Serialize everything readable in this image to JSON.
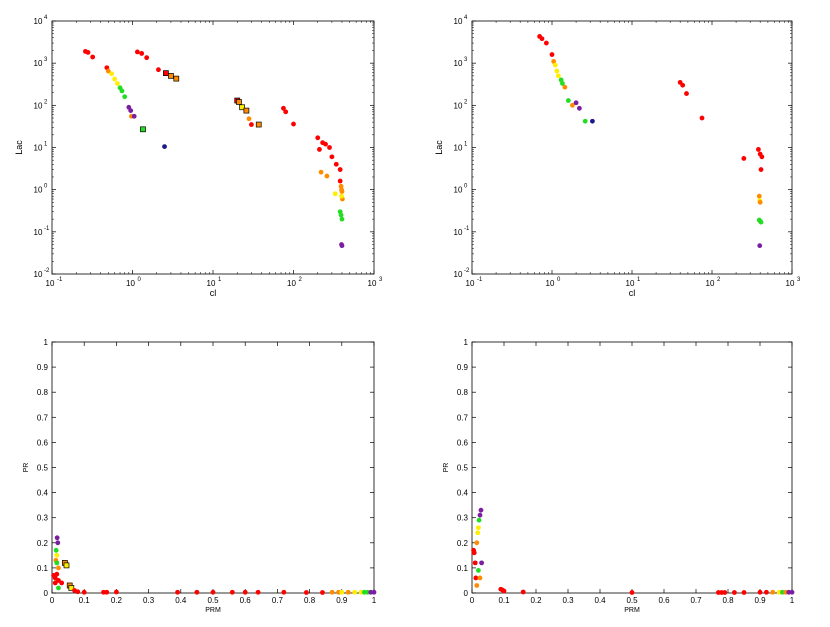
{
  "chart_data": [
    {
      "type": "scatter",
      "title": "",
      "xlabel": "cl",
      "ylabel": "Lac",
      "xscale": "log",
      "yscale": "log",
      "xlim": [
        0.1,
        1000
      ],
      "ylim": [
        0.01,
        10000
      ],
      "xticks": [
        0.1,
        1,
        10,
        100,
        1000
      ],
      "yticks": [
        0.01,
        0.1,
        1,
        10,
        100,
        1000,
        10000
      ],
      "xtick_labels": [
        [
          "10",
          "-1"
        ],
        [
          "10",
          "0"
        ],
        [
          "10",
          "1"
        ],
        [
          "10",
          "2"
        ],
        [
          "10",
          "3"
        ]
      ],
      "ytick_labels": [
        [
          "10",
          "-2"
        ],
        [
          "10",
          "-1"
        ],
        [
          "10",
          "0"
        ],
        [
          "10",
          "1"
        ],
        [
          "10",
          "2"
        ],
        [
          "10",
          "3"
        ],
        [
          "10",
          "4"
        ]
      ],
      "grid": false,
      "legend": false,
      "colors": {
        "red": "#ff0000",
        "orange": "#ff8c00",
        "yellow": "#ffee00",
        "green": "#22dd22",
        "purple": "#7a1fa2",
        "darkblue": "#1a1a8a"
      },
      "points": [
        {
          "x": 0.26,
          "y": 1900,
          "c": "red"
        },
        {
          "x": 0.28,
          "y": 1800,
          "c": "red"
        },
        {
          "x": 0.32,
          "y": 1400,
          "c": "red"
        },
        {
          "x": 1.15,
          "y": 1850,
          "c": "red"
        },
        {
          "x": 1.3,
          "y": 1700,
          "c": "red"
        },
        {
          "x": 1.5,
          "y": 1350,
          "c": "red"
        },
        {
          "x": 2.1,
          "y": 700,
          "c": "red"
        },
        {
          "x": 2.6,
          "y": 580,
          "c": "red",
          "outline": true
        },
        {
          "x": 3.0,
          "y": 500,
          "c": "orange",
          "outline": true
        },
        {
          "x": 3.5,
          "y": 430,
          "c": "orange",
          "outline": true
        },
        {
          "x": 0.48,
          "y": 780,
          "c": "red"
        },
        {
          "x": 0.5,
          "y": 650,
          "c": "orange"
        },
        {
          "x": 0.55,
          "y": 560,
          "c": "yellow"
        },
        {
          "x": 0.6,
          "y": 420,
          "c": "yellow"
        },
        {
          "x": 0.65,
          "y": 330,
          "c": "yellow"
        },
        {
          "x": 0.7,
          "y": 260,
          "c": "green"
        },
        {
          "x": 0.74,
          "y": 220,
          "c": "green"
        },
        {
          "x": 0.8,
          "y": 160,
          "c": "green"
        },
        {
          "x": 0.9,
          "y": 90,
          "c": "purple"
        },
        {
          "x": 0.95,
          "y": 75,
          "c": "purple"
        },
        {
          "x": 0.97,
          "y": 55,
          "c": "orange"
        },
        {
          "x": 1.05,
          "y": 55,
          "c": "purple"
        },
        {
          "x": 1.35,
          "y": 27,
          "c": "green",
          "outline": true
        },
        {
          "x": 2.5,
          "y": 10.5,
          "c": "darkblue"
        },
        {
          "x": 20,
          "y": 130,
          "c": "red",
          "outline": true
        },
        {
          "x": 21,
          "y": 120,
          "c": "orange",
          "outline": true
        },
        {
          "x": 23,
          "y": 90,
          "c": "yellow",
          "outline": true
        },
        {
          "x": 26,
          "y": 75,
          "c": "orange",
          "outline": true
        },
        {
          "x": 28,
          "y": 48,
          "c": "orange"
        },
        {
          "x": 30,
          "y": 35,
          "c": "red"
        },
        {
          "x": 37,
          "y": 35,
          "c": "orange",
          "outline": true
        },
        {
          "x": 75,
          "y": 85,
          "c": "red"
        },
        {
          "x": 80,
          "y": 70,
          "c": "red"
        },
        {
          "x": 100,
          "y": 36,
          "c": "red"
        },
        {
          "x": 200,
          "y": 17,
          "c": "red"
        },
        {
          "x": 210,
          "y": 9,
          "c": "red"
        },
        {
          "x": 230,
          "y": 13,
          "c": "red"
        },
        {
          "x": 250,
          "y": 12,
          "c": "red"
        },
        {
          "x": 280,
          "y": 10,
          "c": "red"
        },
        {
          "x": 300,
          "y": 6,
          "c": "red"
        },
        {
          "x": 340,
          "y": 4,
          "c": "red"
        },
        {
          "x": 380,
          "y": 3,
          "c": "red"
        },
        {
          "x": 220,
          "y": 2.6,
          "c": "orange"
        },
        {
          "x": 260,
          "y": 2.1,
          "c": "orange"
        },
        {
          "x": 330,
          "y": 0.8,
          "c": "yellow"
        },
        {
          "x": 380,
          "y": 1.6,
          "c": "red"
        },
        {
          "x": 390,
          "y": 1.2,
          "c": "orange"
        },
        {
          "x": 395,
          "y": 1.0,
          "c": "orange"
        },
        {
          "x": 400,
          "y": 0.9,
          "c": "orange"
        },
        {
          "x": 405,
          "y": 0.6,
          "c": "orange"
        },
        {
          "x": 395,
          "y": 0.7,
          "c": "yellow"
        },
        {
          "x": 380,
          "y": 0.3,
          "c": "green"
        },
        {
          "x": 390,
          "y": 0.25,
          "c": "green"
        },
        {
          "x": 400,
          "y": 0.2,
          "c": "green"
        },
        {
          "x": 395,
          "y": 0.05,
          "c": "purple"
        },
        {
          "x": 400,
          "y": 0.047,
          "c": "purple"
        }
      ]
    },
    {
      "type": "scatter",
      "title": "",
      "xlabel": "cl",
      "ylabel": "Lac",
      "xscale": "log",
      "yscale": "log",
      "xlim": [
        0.1,
        1000
      ],
      "ylim": [
        0.01,
        10000
      ],
      "xticks": [
        0.1,
        1,
        10,
        100,
        1000
      ],
      "yticks": [
        0.01,
        0.1,
        1,
        10,
        100,
        1000,
        10000
      ],
      "xtick_labels": [
        [
          "10",
          "-1"
        ],
        [
          "10",
          "0"
        ],
        [
          "10",
          "1"
        ],
        [
          "10",
          "2"
        ],
        [
          "10",
          "3"
        ]
      ],
      "ytick_labels": [
        [
          "10",
          "-2"
        ],
        [
          "10",
          "-1"
        ],
        [
          "10",
          "0"
        ],
        [
          "10",
          "1"
        ],
        [
          "10",
          "2"
        ],
        [
          "10",
          "3"
        ],
        [
          "10",
          "4"
        ]
      ],
      "grid": false,
      "legend": false,
      "points": [
        {
          "x": 0.7,
          "y": 4300,
          "c": "red"
        },
        {
          "x": 0.75,
          "y": 3800,
          "c": "red"
        },
        {
          "x": 0.85,
          "y": 3000,
          "c": "red"
        },
        {
          "x": 1.0,
          "y": 1600,
          "c": "red"
        },
        {
          "x": 1.05,
          "y": 1100,
          "c": "orange"
        },
        {
          "x": 1.1,
          "y": 900,
          "c": "yellow"
        },
        {
          "x": 1.15,
          "y": 650,
          "c": "yellow"
        },
        {
          "x": 1.2,
          "y": 500,
          "c": "yellow"
        },
        {
          "x": 1.3,
          "y": 400,
          "c": "green"
        },
        {
          "x": 1.35,
          "y": 330,
          "c": "green"
        },
        {
          "x": 1.45,
          "y": 270,
          "c": "orange"
        },
        {
          "x": 1.6,
          "y": 130,
          "c": "green"
        },
        {
          "x": 1.8,
          "y": 100,
          "c": "orange"
        },
        {
          "x": 2.0,
          "y": 115,
          "c": "purple"
        },
        {
          "x": 2.2,
          "y": 85,
          "c": "purple"
        },
        {
          "x": 2.6,
          "y": 42,
          "c": "green"
        },
        {
          "x": 3.2,
          "y": 42,
          "c": "darkblue"
        },
        {
          "x": 40,
          "y": 350,
          "c": "red"
        },
        {
          "x": 43,
          "y": 300,
          "c": "red"
        },
        {
          "x": 48,
          "y": 190,
          "c": "red"
        },
        {
          "x": 75,
          "y": 50,
          "c": "red"
        },
        {
          "x": 250,
          "y": 5.5,
          "c": "red"
        },
        {
          "x": 380,
          "y": 9,
          "c": "red"
        },
        {
          "x": 400,
          "y": 7,
          "c": "red"
        },
        {
          "x": 420,
          "y": 6,
          "c": "red"
        },
        {
          "x": 410,
          "y": 3,
          "c": "red"
        },
        {
          "x": 390,
          "y": 0.7,
          "c": "orange"
        },
        {
          "x": 395,
          "y": 0.55,
          "c": "yellow"
        },
        {
          "x": 400,
          "y": 0.5,
          "c": "orange"
        },
        {
          "x": 390,
          "y": 0.19,
          "c": "green"
        },
        {
          "x": 400,
          "y": 0.18,
          "c": "green"
        },
        {
          "x": 410,
          "y": 0.17,
          "c": "green"
        },
        {
          "x": 395,
          "y": 0.047,
          "c": "purple"
        }
      ]
    },
    {
      "type": "scatter",
      "title": "",
      "xlabel": "PRM",
      "ylabel": "PR",
      "xlim": [
        0,
        1
      ],
      "ylim": [
        0,
        1
      ],
      "xticks": [
        0,
        0.1,
        0.2,
        0.3,
        0.4,
        0.5,
        0.6,
        0.7,
        0.8,
        0.9,
        1
      ],
      "yticks": [
        0,
        0.1,
        0.2,
        0.3,
        0.4,
        0.5,
        0.6,
        0.7,
        0.8,
        0.9,
        1
      ],
      "xtick_labels": [
        "0",
        "0.1",
        "0.2",
        "0.3",
        "0.4",
        "0.5",
        "0.6",
        "0.7",
        "0.8",
        "0.9",
        "1"
      ],
      "ytick_labels": [
        "0",
        "0.1",
        "0.2",
        "0.3",
        "0.4",
        "0.5",
        "0.6",
        "0.7",
        "0.8",
        "0.9",
        "1"
      ],
      "grid": false,
      "legend": false,
      "points": [
        {
          "x": 0.005,
          "y": 0.07,
          "c": "red"
        },
        {
          "x": 0.01,
          "y": 0.06,
          "c": "red"
        },
        {
          "x": 0.015,
          "y": 0.075,
          "c": "red"
        },
        {
          "x": 0.02,
          "y": 0.05,
          "c": "red"
        },
        {
          "x": 0.01,
          "y": 0.04,
          "c": "red"
        },
        {
          "x": 0.012,
          "y": 0.13,
          "c": "orange"
        },
        {
          "x": 0.015,
          "y": 0.15,
          "c": "yellow"
        },
        {
          "x": 0.013,
          "y": 0.17,
          "c": "green"
        },
        {
          "x": 0.015,
          "y": 0.12,
          "c": "green"
        },
        {
          "x": 0.018,
          "y": 0.2,
          "c": "purple"
        },
        {
          "x": 0.016,
          "y": 0.22,
          "c": "purple"
        },
        {
          "x": 0.02,
          "y": 0.1,
          "c": "orange"
        },
        {
          "x": 0.02,
          "y": 0.02,
          "c": "green"
        },
        {
          "x": 0.03,
          "y": 0.04,
          "c": "red"
        },
        {
          "x": 0.04,
          "y": 0.12,
          "c": "orange",
          "outline": true
        },
        {
          "x": 0.045,
          "y": 0.11,
          "c": "yellow",
          "outline": true
        },
        {
          "x": 0.055,
          "y": 0.03,
          "c": "orange",
          "outline": true
        },
        {
          "x": 0.06,
          "y": 0.02,
          "c": "yellow",
          "outline": true
        },
        {
          "x": 0.07,
          "y": 0.01,
          "c": "red"
        },
        {
          "x": 0.08,
          "y": 0.005,
          "c": "red"
        },
        {
          "x": 0.1,
          "y": 0.003,
          "c": "red"
        },
        {
          "x": 0.16,
          "y": 0.003,
          "c": "red"
        },
        {
          "x": 0.17,
          "y": 0.003,
          "c": "red"
        },
        {
          "x": 0.2,
          "y": 0.004,
          "c": "red"
        },
        {
          "x": 0.39,
          "y": 0.003,
          "c": "red"
        },
        {
          "x": 0.45,
          "y": 0.003,
          "c": "red"
        },
        {
          "x": 0.5,
          "y": 0.003,
          "c": "red"
        },
        {
          "x": 0.56,
          "y": 0.003,
          "c": "red"
        },
        {
          "x": 0.6,
          "y": 0.003,
          "c": "red"
        },
        {
          "x": 0.64,
          "y": 0.003,
          "c": "red"
        },
        {
          "x": 0.72,
          "y": 0.003,
          "c": "red"
        },
        {
          "x": 0.79,
          "y": 0.002,
          "c": "red"
        },
        {
          "x": 0.84,
          "y": 0.002,
          "c": "red"
        },
        {
          "x": 0.87,
          "y": 0.003,
          "c": "orange"
        },
        {
          "x": 0.89,
          "y": 0.003,
          "c": "orange"
        },
        {
          "x": 0.9,
          "y": 0.003,
          "c": "yellow"
        },
        {
          "x": 0.92,
          "y": 0.003,
          "c": "orange"
        },
        {
          "x": 0.94,
          "y": 0.003,
          "c": "yellow"
        },
        {
          "x": 0.96,
          "y": 0.003,
          "c": "yellow"
        },
        {
          "x": 0.97,
          "y": 0.003,
          "c": "green"
        },
        {
          "x": 0.98,
          "y": 0.003,
          "c": "green"
        },
        {
          "x": 0.99,
          "y": 0.003,
          "c": "purple"
        },
        {
          "x": 1.0,
          "y": 0.003,
          "c": "purple"
        }
      ]
    },
    {
      "type": "scatter",
      "title": "",
      "xlabel": "PRM",
      "ylabel": "PR",
      "xlim": [
        0,
        1
      ],
      "ylim": [
        0,
        1
      ],
      "xticks": [
        0,
        0.1,
        0.2,
        0.3,
        0.4,
        0.5,
        0.6,
        0.7,
        0.8,
        0.9,
        1
      ],
      "yticks": [
        0,
        0.1,
        0.2,
        0.3,
        0.4,
        0.5,
        0.6,
        0.7,
        0.8,
        0.9,
        1
      ],
      "xtick_labels": [
        "0",
        "0.1",
        "0.2",
        "0.3",
        "0.4",
        "0.5",
        "0.6",
        "0.7",
        "0.8",
        "0.9",
        "1"
      ],
      "ytick_labels": [
        "0",
        "0.1",
        "0.2",
        "0.3",
        "0.4",
        "0.5",
        "0.6",
        "0.7",
        "0.8",
        "0.9",
        "1"
      ],
      "grid": false,
      "legend": false,
      "points": [
        {
          "x": 0.005,
          "y": 0.17,
          "c": "red"
        },
        {
          "x": 0.007,
          "y": 0.16,
          "c": "red"
        },
        {
          "x": 0.01,
          "y": 0.12,
          "c": "red"
        },
        {
          "x": 0.012,
          "y": 0.06,
          "c": "red"
        },
        {
          "x": 0.015,
          "y": 0.03,
          "c": "orange"
        },
        {
          "x": 0.015,
          "y": 0.2,
          "c": "orange"
        },
        {
          "x": 0.018,
          "y": 0.24,
          "c": "yellow"
        },
        {
          "x": 0.02,
          "y": 0.26,
          "c": "yellow"
        },
        {
          "x": 0.02,
          "y": 0.09,
          "c": "green"
        },
        {
          "x": 0.022,
          "y": 0.29,
          "c": "green"
        },
        {
          "x": 0.025,
          "y": 0.31,
          "c": "purple"
        },
        {
          "x": 0.028,
          "y": 0.33,
          "c": "purple"
        },
        {
          "x": 0.03,
          "y": 0.12,
          "c": "purple"
        },
        {
          "x": 0.025,
          "y": 0.06,
          "c": "orange"
        },
        {
          "x": 0.09,
          "y": 0.015,
          "c": "red"
        },
        {
          "x": 0.095,
          "y": 0.012,
          "c": "red"
        },
        {
          "x": 0.1,
          "y": 0.008,
          "c": "red"
        },
        {
          "x": 0.16,
          "y": 0.004,
          "c": "red"
        },
        {
          "x": 0.5,
          "y": 0.002,
          "c": "red"
        },
        {
          "x": 0.77,
          "y": 0.002,
          "c": "red"
        },
        {
          "x": 0.78,
          "y": 0.002,
          "c": "red"
        },
        {
          "x": 0.79,
          "y": 0.002,
          "c": "red"
        },
        {
          "x": 0.82,
          "y": 0.002,
          "c": "red"
        },
        {
          "x": 0.85,
          "y": 0.002,
          "c": "red"
        },
        {
          "x": 0.9,
          "y": 0.003,
          "c": "red"
        },
        {
          "x": 0.92,
          "y": 0.003,
          "c": "red"
        },
        {
          "x": 0.94,
          "y": 0.003,
          "c": "orange"
        },
        {
          "x": 0.96,
          "y": 0.003,
          "c": "yellow"
        },
        {
          "x": 0.97,
          "y": 0.003,
          "c": "green"
        },
        {
          "x": 0.98,
          "y": 0.003,
          "c": "orange"
        },
        {
          "x": 0.99,
          "y": 0.003,
          "c": "purple"
        },
        {
          "x": 1.0,
          "y": 0.003,
          "c": "purple"
        }
      ]
    }
  ]
}
